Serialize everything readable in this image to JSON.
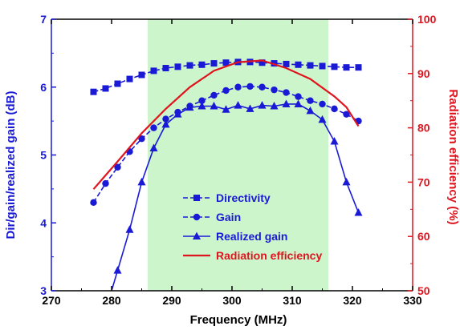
{
  "chart_data": {
    "type": "line",
    "xlabel": "Frequency (MHz)",
    "ylabel_left": "Dir/gain/realized gain (dB)",
    "ylabel_right": "Radiation efficiency (%)",
    "xlim": [
      270,
      330
    ],
    "ylim_left": [
      3,
      7
    ],
    "ylim_right": [
      50,
      100
    ],
    "x_ticks": [
      "270",
      "280",
      "290",
      "300",
      "310",
      "320",
      "330"
    ],
    "y_ticks_left": [
      "3",
      "4",
      "5",
      "6",
      "7"
    ],
    "y_ticks_right": [
      "50",
      "60",
      "70",
      "80",
      "90",
      "100"
    ],
    "shaded_band": {
      "x_start": 286,
      "x_end": 316,
      "color": "#ccf5cc"
    },
    "colors": {
      "left_axis": "#1a1ad6",
      "right_axis": "#e0141e"
    },
    "legend_position": "lower-center",
    "series": [
      {
        "name": "Directivity",
        "axis": "left",
        "marker": "square",
        "dashed": true,
        "color": "#1a1ad6",
        "x": [
          277,
          279,
          281,
          283,
          285,
          287,
          289,
          291,
          293,
          295,
          297,
          299,
          301,
          303,
          305,
          307,
          309,
          311,
          313,
          315,
          317,
          319,
          321
        ],
        "y": [
          5.93,
          5.98,
          6.05,
          6.12,
          6.18,
          6.24,
          6.28,
          6.3,
          6.32,
          6.33,
          6.35,
          6.36,
          6.37,
          6.37,
          6.36,
          6.35,
          6.34,
          6.33,
          6.32,
          6.31,
          6.3,
          6.29,
          6.29
        ]
      },
      {
        "name": "Gain",
        "axis": "left",
        "marker": "circle",
        "dashed": true,
        "color": "#1a1ad6",
        "x": [
          277,
          279,
          281,
          283,
          285,
          287,
          289,
          291,
          293,
          295,
          297,
          299,
          301,
          303,
          305,
          307,
          309,
          311,
          313,
          315,
          317,
          319,
          321
        ],
        "y": [
          4.3,
          4.58,
          4.82,
          5.05,
          5.24,
          5.4,
          5.53,
          5.63,
          5.72,
          5.8,
          5.88,
          5.95,
          6.0,
          6.01,
          6.0,
          5.96,
          5.92,
          5.86,
          5.8,
          5.75,
          5.68,
          5.6,
          5.5
        ]
      },
      {
        "name": "Realized gain",
        "axis": "left",
        "marker": "triangle",
        "dashed": false,
        "color": "#1a1ad6",
        "x": [
          279,
          281,
          283,
          285,
          287,
          289,
          291,
          293,
          295,
          297,
          299,
          301,
          303,
          305,
          307,
          309,
          311,
          313,
          315,
          317,
          319,
          321
        ],
        "y": [
          2.7,
          3.3,
          3.9,
          4.6,
          5.1,
          5.45,
          5.6,
          5.7,
          5.72,
          5.72,
          5.67,
          5.73,
          5.68,
          5.73,
          5.72,
          5.75,
          5.75,
          5.65,
          5.52,
          5.2,
          4.6,
          4.15
        ]
      },
      {
        "name": "Radiation efficiency",
        "axis": "right",
        "marker": "none",
        "dashed": false,
        "color": "#e0141e",
        "x": [
          277,
          281,
          285,
          289,
          293,
          297,
          301,
          305,
          309,
          313,
          317,
          319,
          321
        ],
        "y": [
          68.7,
          73.8,
          79.0,
          83.5,
          87.5,
          90.5,
          92.1,
          92.4,
          91.0,
          89.0,
          85.8,
          83.8,
          80.3
        ]
      }
    ]
  }
}
